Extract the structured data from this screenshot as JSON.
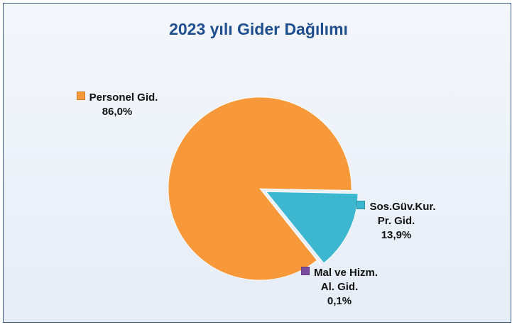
{
  "chart_data": {
    "type": "pie",
    "title": "2023 yılı Gider Dağılımı",
    "categories": [
      "Personel Gid.",
      "Sos.Güv.Kur.\nPr. Gid.",
      "Mal ve Hizm.\nAl. Gid."
    ],
    "values": [
      86.0,
      13.9,
      0.1
    ],
    "value_labels": [
      "86,0%",
      "13,9%",
      "0,1%"
    ],
    "colors": [
      "#f7993a",
      "#3db6cf",
      "#7b4c9f"
    ]
  }
}
